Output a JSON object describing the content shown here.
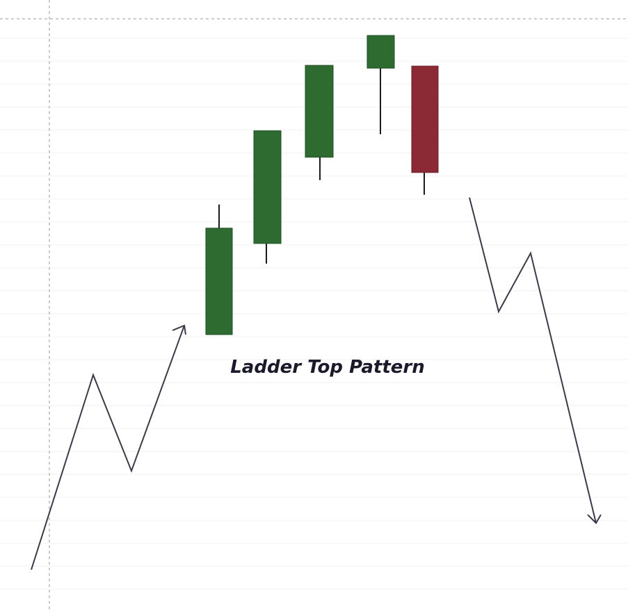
{
  "title": "Ladder Top Pattern"
}
